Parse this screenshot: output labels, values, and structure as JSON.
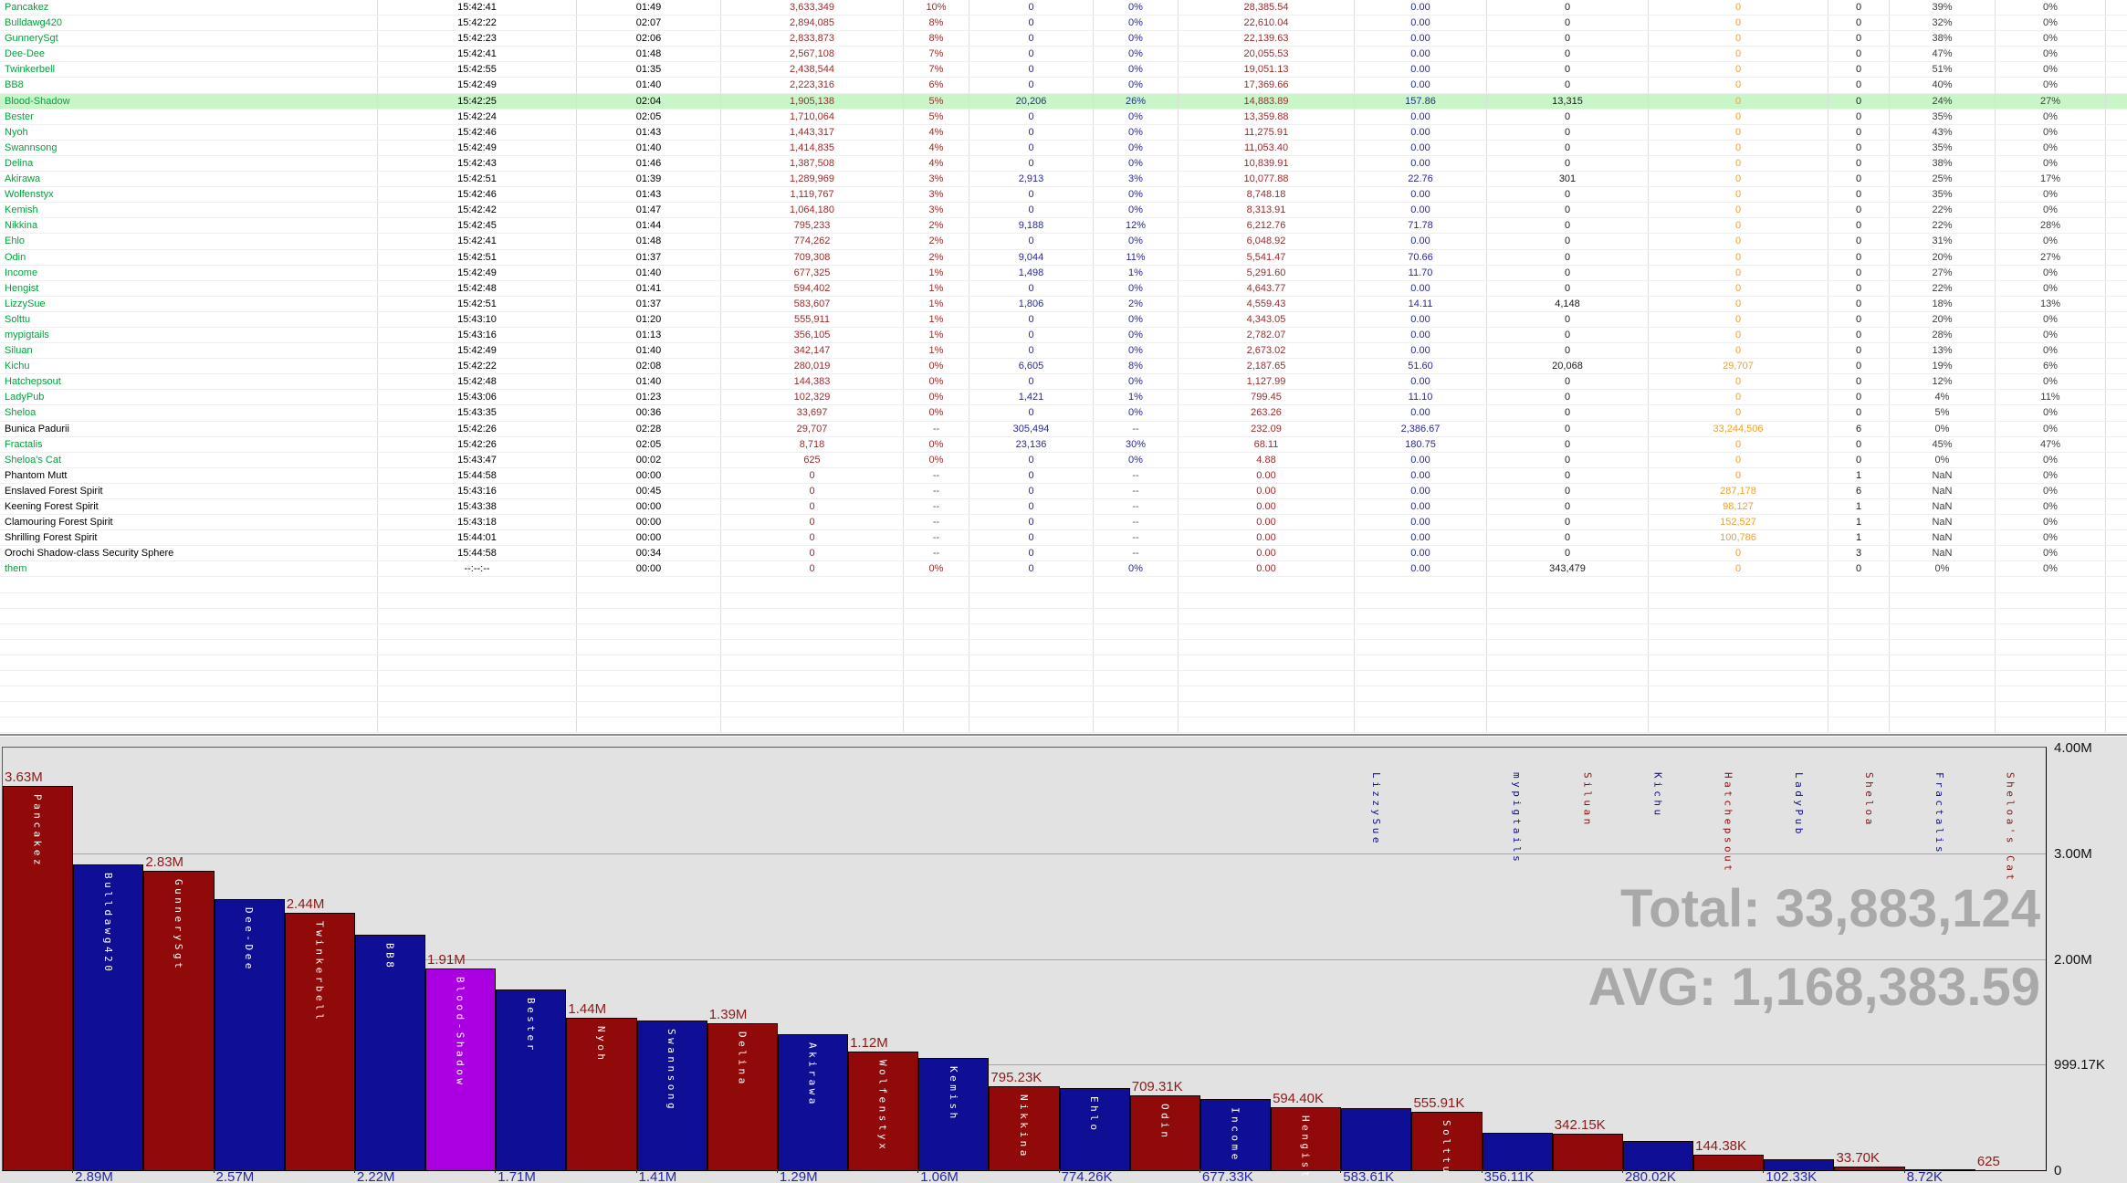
{
  "window": {
    "description": "combat parser encounter table with damage bar chart",
    "highlighted_row": "Blood-Shadow"
  },
  "palette": {
    "player_name_green": "#00a33c",
    "npc_name_black": "#000000",
    "damage_red": "#9c2b2b",
    "heal_blue": "#28289a",
    "neutral_black": "#1a1a1a",
    "orange": "#efa02c",
    "pct_gray": "#3d3d3d",
    "dash_gray": "#555555",
    "highlight_green": "#c9f6c9",
    "bar_red": "#910a0a",
    "bar_blue": "#0f0f96",
    "bar_purple": "#aa00e1",
    "chart_bg": "#e2e2e2",
    "totals_gray": "#a9a9a9"
  },
  "table": {
    "column_colors": [
      "#000000",
      "#000000",
      "#9c2b2b",
      "#9c2b2b",
      "#28289a",
      "#28289a",
      "#9c2b2b",
      "#28289a",
      "#1a1a1a",
      "#efa02c",
      "#1a1a1a",
      "#3d3d3d",
      "#3d3d3d"
    ],
    "rows": [
      {
        "n": "Pancakez",
        "g": true,
        "hl": false,
        "c": [
          "15:42:41",
          "01:49",
          "3,633,349",
          "10%",
          "0",
          "0%",
          "28,385.54",
          "0.00",
          "0",
          "0",
          "0",
          "39%",
          "0%"
        ]
      },
      {
        "n": "Bulldawg420",
        "g": true,
        "hl": false,
        "c": [
          "15:42:22",
          "02:07",
          "2,894,085",
          "8%",
          "0",
          "0%",
          "22,610.04",
          "0.00",
          "0",
          "0",
          "0",
          "32%",
          "0%"
        ]
      },
      {
        "n": "GunnerySgt",
        "g": true,
        "hl": false,
        "c": [
          "15:42:23",
          "02:06",
          "2,833,873",
          "8%",
          "0",
          "0%",
          "22,139.63",
          "0.00",
          "0",
          "0",
          "0",
          "38%",
          "0%"
        ]
      },
      {
        "n": "Dee-Dee",
        "g": true,
        "hl": false,
        "c": [
          "15:42:41",
          "01:48",
          "2,567,108",
          "7%",
          "0",
          "0%",
          "20,055.53",
          "0.00",
          "0",
          "0",
          "0",
          "47%",
          "0%"
        ]
      },
      {
        "n": "Twinkerbell",
        "g": true,
        "hl": false,
        "c": [
          "15:42:55",
          "01:35",
          "2,438,544",
          "7%",
          "0",
          "0%",
          "19,051.13",
          "0.00",
          "0",
          "0",
          "0",
          "51%",
          "0%"
        ]
      },
      {
        "n": "BB8",
        "g": true,
        "hl": false,
        "c": [
          "15:42:49",
          "01:40",
          "2,223,316",
          "6%",
          "0",
          "0%",
          "17,369.66",
          "0.00",
          "0",
          "0",
          "0",
          "40%",
          "0%"
        ]
      },
      {
        "n": "Blood-Shadow",
        "g": true,
        "hl": true,
        "c": [
          "15:42:25",
          "02:04",
          "1,905,138",
          "5%",
          "20,206",
          "26%",
          "14,883.89",
          "157.86",
          "13,315",
          "0",
          "0",
          "24%",
          "27%"
        ]
      },
      {
        "n": "Bester",
        "g": true,
        "hl": false,
        "c": [
          "15:42:24",
          "02:05",
          "1,710,064",
          "5%",
          "0",
          "0%",
          "13,359.88",
          "0.00",
          "0",
          "0",
          "0",
          "35%",
          "0%"
        ]
      },
      {
        "n": "Nyoh",
        "g": true,
        "hl": false,
        "c": [
          "15:42:46",
          "01:43",
          "1,443,317",
          "4%",
          "0",
          "0%",
          "11,275.91",
          "0.00",
          "0",
          "0",
          "0",
          "43%",
          "0%"
        ]
      },
      {
        "n": "Swannsong",
        "g": true,
        "hl": false,
        "c": [
          "15:42:49",
          "01:40",
          "1,414,835",
          "4%",
          "0",
          "0%",
          "11,053.40",
          "0.00",
          "0",
          "0",
          "0",
          "35%",
          "0%"
        ]
      },
      {
        "n": "Delina",
        "g": true,
        "hl": false,
        "c": [
          "15:42:43",
          "01:46",
          "1,387,508",
          "4%",
          "0",
          "0%",
          "10,839.91",
          "0.00",
          "0",
          "0",
          "0",
          "38%",
          "0%"
        ]
      },
      {
        "n": "Akirawa",
        "g": true,
        "hl": false,
        "c": [
          "15:42:51",
          "01:39",
          "1,289,969",
          "3%",
          "2,913",
          "3%",
          "10,077.88",
          "22.76",
          "301",
          "0",
          "0",
          "25%",
          "17%"
        ]
      },
      {
        "n": "Wolfenstyx",
        "g": true,
        "hl": false,
        "c": [
          "15:42:46",
          "01:43",
          "1,119,767",
          "3%",
          "0",
          "0%",
          "8,748.18",
          "0.00",
          "0",
          "0",
          "0",
          "35%",
          "0%"
        ]
      },
      {
        "n": "Kemish",
        "g": true,
        "hl": false,
        "c": [
          "15:42:42",
          "01:47",
          "1,064,180",
          "3%",
          "0",
          "0%",
          "8,313.91",
          "0.00",
          "0",
          "0",
          "0",
          "22%",
          "0%"
        ]
      },
      {
        "n": "Nikkina",
        "g": true,
        "hl": false,
        "c": [
          "15:42:45",
          "01:44",
          "795,233",
          "2%",
          "9,188",
          "12%",
          "6,212.76",
          "71.78",
          "0",
          "0",
          "0",
          "22%",
          "28%"
        ]
      },
      {
        "n": "Ehlo",
        "g": true,
        "hl": false,
        "c": [
          "15:42:41",
          "01:48",
          "774,262",
          "2%",
          "0",
          "0%",
          "6,048.92",
          "0.00",
          "0",
          "0",
          "0",
          "31%",
          "0%"
        ]
      },
      {
        "n": "Odin",
        "g": true,
        "hl": false,
        "c": [
          "15:42:51",
          "01:37",
          "709,308",
          "2%",
          "9,044",
          "11%",
          "5,541.47",
          "70.66",
          "0",
          "0",
          "0",
          "20%",
          "27%"
        ]
      },
      {
        "n": "Income",
        "g": true,
        "hl": false,
        "c": [
          "15:42:49",
          "01:40",
          "677,325",
          "1%",
          "1,498",
          "1%",
          "5,291.60",
          "11.70",
          "0",
          "0",
          "0",
          "27%",
          "0%"
        ]
      },
      {
        "n": "Hengist",
        "g": true,
        "hl": false,
        "c": [
          "15:42:48",
          "01:41",
          "594,402",
          "1%",
          "0",
          "0%",
          "4,643.77",
          "0.00",
          "0",
          "0",
          "0",
          "22%",
          "0%"
        ]
      },
      {
        "n": "LizzySue",
        "g": true,
        "hl": false,
        "c": [
          "15:42:51",
          "01:37",
          "583,607",
          "1%",
          "1,806",
          "2%",
          "4,559.43",
          "14.11",
          "4,148",
          "0",
          "0",
          "18%",
          "13%"
        ]
      },
      {
        "n": "Solttu",
        "g": true,
        "hl": false,
        "c": [
          "15:43:10",
          "01:20",
          "555,911",
          "1%",
          "0",
          "0%",
          "4,343.05",
          "0.00",
          "0",
          "0",
          "0",
          "20%",
          "0%"
        ]
      },
      {
        "n": "mypigtails",
        "g": true,
        "hl": false,
        "c": [
          "15:43:16",
          "01:13",
          "356,105",
          "1%",
          "0",
          "0%",
          "2,782.07",
          "0.00",
          "0",
          "0",
          "0",
          "28%",
          "0%"
        ]
      },
      {
        "n": "Siluan",
        "g": true,
        "hl": false,
        "c": [
          "15:42:49",
          "01:40",
          "342,147",
          "1%",
          "0",
          "0%",
          "2,673.02",
          "0.00",
          "0",
          "0",
          "0",
          "13%",
          "0%"
        ]
      },
      {
        "n": "Kichu",
        "g": true,
        "hl": false,
        "c": [
          "15:42:22",
          "02:08",
          "280,019",
          "0%",
          "6,605",
          "8%",
          "2,187.65",
          "51.60",
          "20,068",
          "29,707",
          "0",
          "19%",
          "6%"
        ]
      },
      {
        "n": "Hatchepsout",
        "g": true,
        "hl": false,
        "c": [
          "15:42:48",
          "01:40",
          "144,383",
          "0%",
          "0",
          "0%",
          "1,127.99",
          "0.00",
          "0",
          "0",
          "0",
          "12%",
          "0%"
        ]
      },
      {
        "n": "LadyPub",
        "g": true,
        "hl": false,
        "c": [
          "15:43:06",
          "01:23",
          "102,329",
          "0%",
          "1,421",
          "1%",
          "799.45",
          "11.10",
          "0",
          "0",
          "0",
          "4%",
          "11%"
        ]
      },
      {
        "n": "Sheloa",
        "g": true,
        "hl": false,
        "c": [
          "15:43:35",
          "00:36",
          "33,697",
          "0%",
          "0",
          "0%",
          "263.26",
          "0.00",
          "0",
          "0",
          "0",
          "5%",
          "0%"
        ]
      },
      {
        "n": "Bunica Padurii",
        "g": false,
        "hl": false,
        "c": [
          "15:42:26",
          "02:28",
          "29,707",
          "--",
          "305,494",
          "--",
          "232.09",
          "2,386.67",
          "0",
          "33,244,506",
          "6",
          "0%",
          "0%"
        ]
      },
      {
        "n": "Fractalis",
        "g": true,
        "hl": false,
        "c": [
          "15:42:26",
          "02:05",
          "8,718",
          "0%",
          "23,136",
          "30%",
          "68.11",
          "180.75",
          "0",
          "0",
          "0",
          "45%",
          "47%"
        ]
      },
      {
        "n": "Sheloa's Cat",
        "g": true,
        "hl": false,
        "c": [
          "15:43:47",
          "00:02",
          "625",
          "0%",
          "0",
          "0%",
          "4.88",
          "0.00",
          "0",
          "0",
          "0",
          "0%",
          "0%"
        ]
      },
      {
        "n": "Phantom Mutt",
        "g": false,
        "hl": false,
        "c": [
          "15:44:58",
          "00:00",
          "0",
          "--",
          "0",
          "--",
          "0.00",
          "0.00",
          "0",
          "0",
          "1",
          "NaN",
          "0%"
        ]
      },
      {
        "n": "Enslaved Forest Spirit",
        "g": false,
        "hl": false,
        "c": [
          "15:43:16",
          "00:45",
          "0",
          "--",
          "0",
          "--",
          "0.00",
          "0.00",
          "0",
          "287,178",
          "6",
          "NaN",
          "0%"
        ]
      },
      {
        "n": "Keening Forest Spirit",
        "g": false,
        "hl": false,
        "c": [
          "15:43:38",
          "00:00",
          "0",
          "--",
          "0",
          "--",
          "0.00",
          "0.00",
          "0",
          "98,127",
          "1",
          "NaN",
          "0%"
        ]
      },
      {
        "n": "Clamouring Forest Spirit",
        "g": false,
        "hl": false,
        "c": [
          "15:43:18",
          "00:00",
          "0",
          "--",
          "0",
          "--",
          "0.00",
          "0.00",
          "0",
          "152,527",
          "1",
          "NaN",
          "0%"
        ]
      },
      {
        "n": "Shrilling Forest Spirit",
        "g": false,
        "hl": false,
        "c": [
          "15:44:01",
          "00:00",
          "0",
          "--",
          "0",
          "--",
          "0.00",
          "0.00",
          "0",
          "100,786",
          "1",
          "NaN",
          "0%"
        ]
      },
      {
        "n": "Orochi Shadow-class Security Sphere",
        "g": false,
        "hl": false,
        "c": [
          "15:44:58",
          "00:34",
          "0",
          "--",
          "0",
          "--",
          "0.00",
          "0.00",
          "0",
          "0",
          "3",
          "NaN",
          "0%"
        ]
      },
      {
        "n": "them",
        "g": true,
        "hl": false,
        "c": [
          "--:--:--",
          "00:00",
          "0",
          "0%",
          "0",
          "0%",
          "0.00",
          "0.00",
          "343,479",
          "0",
          "0",
          "0%",
          "0%"
        ]
      }
    ]
  },
  "chart_data": {
    "type": "bar",
    "title": "",
    "xlabel": "",
    "ylabel": "",
    "ylim": [
      0,
      3996684
    ],
    "grid": true,
    "total_label": "Total: 33,883,124",
    "avg_label": "AVG: 1,168,383.59",
    "y_axis_ticks": [
      {
        "label": "4.00M",
        "value": 3996684
      },
      {
        "label": "3.00M",
        "value": 2997513
      },
      {
        "label": "2.00M",
        "value": 1998342
      },
      {
        "label": "999.17K",
        "value": 999171
      },
      {
        "label": "0",
        "value": 0
      }
    ],
    "bars": [
      {
        "name": "Pancakez",
        "value": 3633349,
        "label": "3.63M",
        "label_pos": "above",
        "color": "red",
        "name_pos": "inside"
      },
      {
        "name": "Bulldawg420",
        "value": 2894085,
        "label": "2.89M",
        "label_pos": "below",
        "color": "blue",
        "name_pos": "inside"
      },
      {
        "name": "GunnerySgt",
        "value": 2833873,
        "label": "2.83M",
        "label_pos": "above",
        "color": "red",
        "name_pos": "inside"
      },
      {
        "name": "Dee-Dee",
        "value": 2567108,
        "label": "2.57M",
        "label_pos": "below",
        "color": "blue",
        "name_pos": "inside"
      },
      {
        "name": "Twinkerbell",
        "value": 2438544,
        "label": "2.44M",
        "label_pos": "above",
        "color": "red",
        "name_pos": "inside"
      },
      {
        "name": "BB8",
        "value": 2223316,
        "label": "2.22M",
        "label_pos": "below",
        "color": "blue",
        "name_pos": "inside"
      },
      {
        "name": "Blood-Shadow",
        "value": 1905138,
        "label": "1.91M",
        "label_pos": "above",
        "color": "purple",
        "name_pos": "inside"
      },
      {
        "name": "Bester",
        "value": 1710064,
        "label": "1.71M",
        "label_pos": "below",
        "color": "blue",
        "name_pos": "inside"
      },
      {
        "name": "Nyoh",
        "value": 1443317,
        "label": "1.44M",
        "label_pos": "above",
        "color": "red",
        "name_pos": "inside"
      },
      {
        "name": "Swannsong",
        "value": 1414835,
        "label": "1.41M",
        "label_pos": "below",
        "color": "blue",
        "name_pos": "inside"
      },
      {
        "name": "Delina",
        "value": 1387508,
        "label": "1.39M",
        "label_pos": "above",
        "color": "red",
        "name_pos": "inside"
      },
      {
        "name": "Akirawa",
        "value": 1289969,
        "label": "1.29M",
        "label_pos": "below",
        "color": "blue",
        "name_pos": "inside"
      },
      {
        "name": "Wolfenstyx",
        "value": 1119767,
        "label": "1.12M",
        "label_pos": "above",
        "color": "red",
        "name_pos": "inside"
      },
      {
        "name": "Kemish",
        "value": 1064180,
        "label": "1.06M",
        "label_pos": "below",
        "color": "blue",
        "name_pos": "inside"
      },
      {
        "name": "Nikkina",
        "value": 795233,
        "label": "795.23K",
        "label_pos": "above",
        "color": "red",
        "name_pos": "inside"
      },
      {
        "name": "Ehlo",
        "value": 774262,
        "label": "774.26K",
        "label_pos": "below",
        "color": "blue",
        "name_pos": "inside"
      },
      {
        "name": "Odin",
        "value": 709308,
        "label": "709.31K",
        "label_pos": "above",
        "color": "red",
        "name_pos": "inside"
      },
      {
        "name": "Income",
        "value": 677325,
        "label": "677.33K",
        "label_pos": "below",
        "color": "blue",
        "name_pos": "inside"
      },
      {
        "name": "Hengist",
        "value": 594402,
        "label": "594.40K",
        "label_pos": "above",
        "color": "red",
        "name_pos": "inside"
      },
      {
        "name": "LizzySue",
        "value": 583607,
        "label": "583.61K",
        "label_pos": "below",
        "color": "blue",
        "name_pos": "top"
      },
      {
        "name": "Solttu",
        "value": 555911,
        "label": "555.91K",
        "label_pos": "above",
        "color": "red",
        "name_pos": "inside"
      },
      {
        "name": "mypigtails",
        "value": 356105,
        "label": "356.11K",
        "label_pos": "below",
        "color": "blue",
        "name_pos": "top"
      },
      {
        "name": "Siluan",
        "value": 342147,
        "label": "342.15K",
        "label_pos": "above",
        "color": "red",
        "name_pos": "top"
      },
      {
        "name": "Kichu",
        "value": 280019,
        "label": "280.02K",
        "label_pos": "below",
        "color": "blue",
        "name_pos": "top"
      },
      {
        "name": "Hatchepsout",
        "value": 144383,
        "label": "144.38K",
        "label_pos": "above",
        "color": "red",
        "name_pos": "top"
      },
      {
        "name": "LadyPub",
        "value": 102329,
        "label": "102.33K",
        "label_pos": "below",
        "color": "blue",
        "name_pos": "top"
      },
      {
        "name": "Sheloa",
        "value": 33697,
        "label": "33.70K",
        "label_pos": "above",
        "color": "red",
        "name_pos": "top"
      },
      {
        "name": "Fractalis",
        "value": 8718,
        "label": "8.72K",
        "label_pos": "below",
        "color": "blue",
        "name_pos": "top"
      },
      {
        "name": "Sheloa's Cat",
        "value": 625,
        "label": "625",
        "label_pos": "above",
        "color": "red",
        "name_pos": "top"
      }
    ]
  }
}
